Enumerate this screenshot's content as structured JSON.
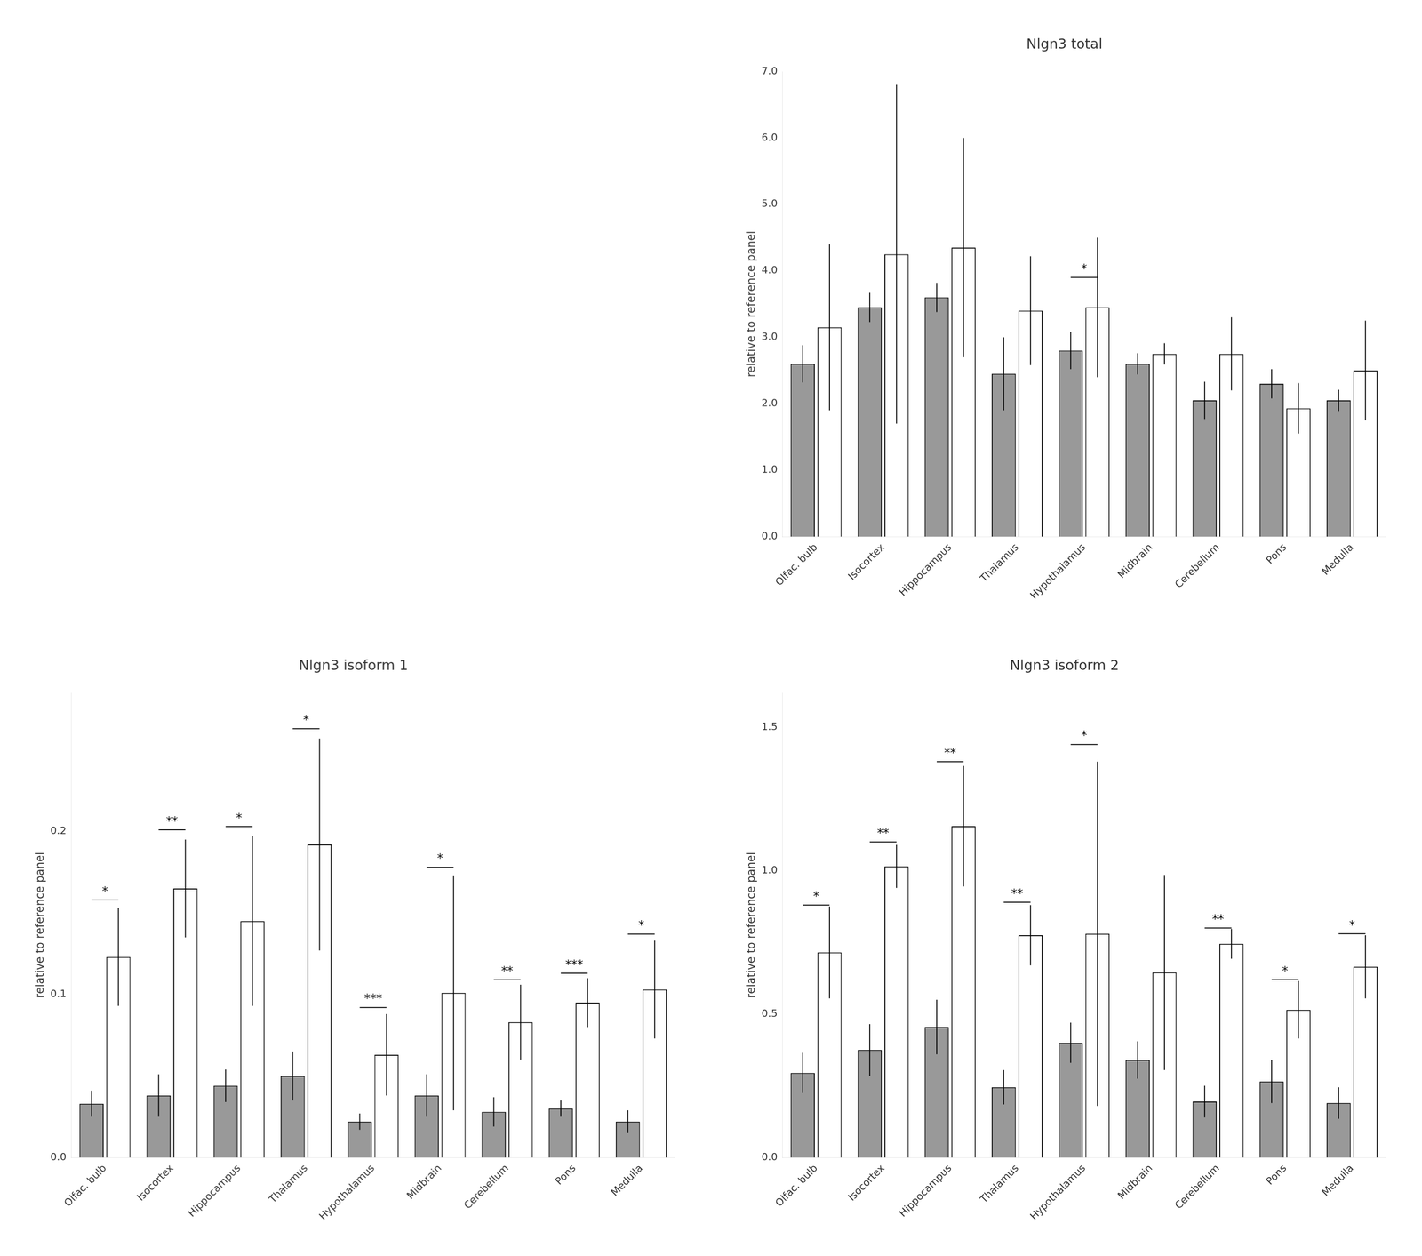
{
  "chart_data": [
    {
      "type": "bar",
      "title": "Nlgn3 total",
      "ylabel": "relative to reference panel",
      "categories": [
        "Olfac. bulb",
        "Isocortex",
        "Hippocampus",
        "Thalamus",
        "Hypothalamus",
        "Midbrain",
        "Cerebellum",
        "Pons",
        "Medulla"
      ],
      "series": [
        {
          "color": "#999999",
          "values": [
            2.6,
            3.45,
            3.6,
            2.45,
            2.8,
            2.6,
            2.05,
            2.3,
            2.05
          ],
          "errors": [
            0.28,
            0.22,
            0.22,
            0.55,
            0.28,
            0.16,
            0.28,
            0.22,
            0.16
          ]
        },
        {
          "color": "#ffffff",
          "values": [
            3.15,
            4.25,
            4.35,
            3.4,
            3.45,
            2.75,
            2.75,
            1.93,
            2.5
          ],
          "errors": [
            1.25,
            2.55,
            1.65,
            0.82,
            1.05,
            0.16,
            0.55,
            0.38,
            0.75
          ]
        }
      ],
      "ylim": [
        0,
        7
      ],
      "yticks": [
        {
          "value": 0,
          "label": "0.0"
        },
        {
          "value": 1,
          "label": "1.0"
        },
        {
          "value": 2,
          "label": "2.0"
        },
        {
          "value": 3,
          "label": "3.0"
        },
        {
          "value": 4,
          "label": "4.0"
        },
        {
          "value": 5,
          "label": "5.0"
        },
        {
          "value": 6,
          "label": "6.0"
        },
        {
          "value": 7,
          "label": "7.0"
        }
      ],
      "annotations": [
        {
          "text": "*",
          "x": "Hypothalamus",
          "y": 3.9
        }
      ],
      "grid": false
    },
    {
      "type": "bar",
      "title": "Nlgn3 isoform 1",
      "ylabel": "relative to reference panel",
      "categories": [
        "Olfac. bulb",
        "Isocortex",
        "Hippocampus",
        "Thalamus",
        "Hypothalamus",
        "Midbrain",
        "Cerebellum",
        "Pons",
        "Medulla"
      ],
      "series": [
        {
          "color": "#999999",
          "values": [
            0.033,
            0.038,
            0.044,
            0.05,
            0.022,
            0.038,
            0.028,
            0.03,
            0.022
          ],
          "errors": [
            0.008,
            0.013,
            0.01,
            0.015,
            0.005,
            0.013,
            0.009,
            0.005,
            0.007
          ]
        },
        {
          "color": "#ffffff",
          "values": [
            0.123,
            0.165,
            0.145,
            0.192,
            0.063,
            0.101,
            0.083,
            0.095,
            0.103
          ],
          "errors": [
            0.03,
            0.03,
            0.052,
            0.065,
            0.025,
            0.072,
            0.023,
            0.015,
            0.03
          ]
        }
      ],
      "ylim": [
        0,
        0.285
      ],
      "yticks": [
        {
          "value": 0,
          "label": "0.0"
        },
        0.1,
        0.2
      ],
      "annotations": [
        {
          "text": "*",
          "x": "Olfac. bulb",
          "y": 0.158
        },
        {
          "text": "**",
          "x": "Isocortex",
          "y": 0.201
        },
        {
          "text": "*",
          "x": "Hippocampus",
          "y": 0.203
        },
        {
          "text": "*",
          "x": "Thalamus",
          "y": 0.263
        },
        {
          "text": "***",
          "x": "Hypothalamus",
          "y": 0.092
        },
        {
          "text": "*",
          "x": "Midbrain",
          "y": 0.178
        },
        {
          "text": "**",
          "x": "Cerebellum",
          "y": 0.109
        },
        {
          "text": "***",
          "x": "Pons",
          "y": 0.113
        },
        {
          "text": "*",
          "x": "Medulla",
          "y": 0.137
        }
      ],
      "grid": false
    },
    {
      "type": "bar",
      "title": "Nlgn3 isoform 2",
      "ylabel": "relative to reference panel",
      "categories": [
        "Olfac. bulb",
        "Isocortex",
        "Hippocampus",
        "Thalamus",
        "Hypothalamus",
        "Midbrain",
        "Cerebellum",
        "Pons",
        "Medulla"
      ],
      "series": [
        {
          "color": "#999999",
          "values": [
            0.295,
            0.375,
            0.455,
            0.245,
            0.4,
            0.34,
            0.195,
            0.265,
            0.19
          ],
          "errors": [
            0.07,
            0.09,
            0.095,
            0.06,
            0.07,
            0.065,
            0.055,
            0.075,
            0.055
          ]
        },
        {
          "color": "#ffffff",
          "values": [
            0.715,
            1.015,
            1.155,
            0.775,
            0.78,
            0.645,
            0.745,
            0.515,
            0.665
          ],
          "errors": [
            0.16,
            0.075,
            0.21,
            0.105,
            0.6,
            0.34,
            0.052,
            0.1,
            0.11
          ]
        }
      ],
      "ylim": [
        0,
        1.62
      ],
      "yticks": [
        {
          "value": 0,
          "label": "0.0"
        },
        0.5,
        {
          "value": 1,
          "label": "1.0"
        },
        1.5
      ],
      "annotations": [
        {
          "text": "*",
          "x": "Olfac. bulb",
          "y": 0.88
        },
        {
          "text": "**",
          "x": "Isocortex",
          "y": 1.1
        },
        {
          "text": "**",
          "x": "Hippocampus",
          "y": 1.38
        },
        {
          "text": "**",
          "x": "Thalamus",
          "y": 0.89
        },
        {
          "text": "*",
          "x": "Hypothalamus",
          "y": 1.44
        },
        {
          "text": "**",
          "x": "Cerebellum",
          "y": 0.8
        },
        {
          "text": "*",
          "x": "Pons",
          "y": 0.62
        },
        {
          "text": "*",
          "x": "Medulla",
          "y": 0.78
        }
      ],
      "grid": false
    }
  ]
}
